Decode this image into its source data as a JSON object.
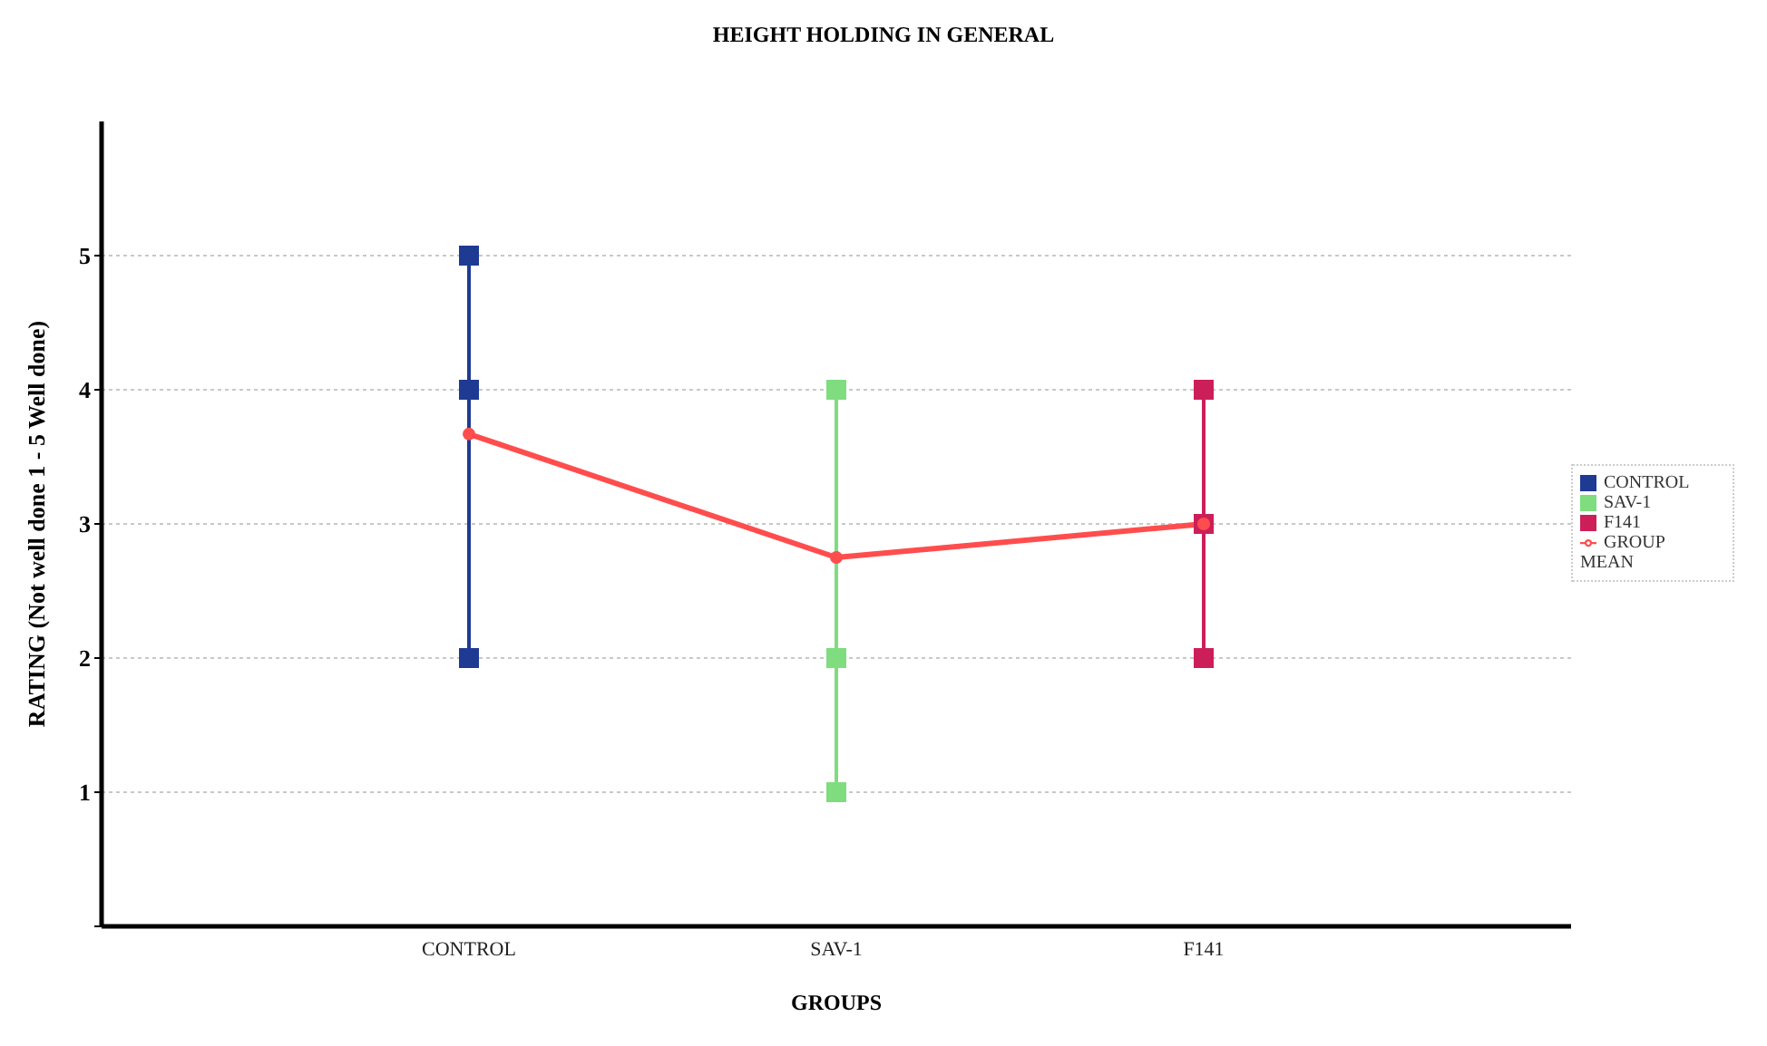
{
  "chart_data": {
    "type": "scatter",
    "title": "HEIGHT HOLDING IN GENERAL",
    "xlabel": "GROUPS",
    "ylabel": "RATING (Not well done 1 - 5 Well done)",
    "categories": [
      "CONTROL",
      "SAV-1",
      "F141"
    ],
    "series": [
      {
        "name": "CONTROL",
        "color": "#1f3a93",
        "x": [
          "CONTROL",
          "CONTROL",
          "CONTROL"
        ],
        "values": [
          5,
          4,
          2
        ]
      },
      {
        "name": "SAV-1",
        "color": "#7fdc7f",
        "x": [
          "SAV-1",
          "SAV-1",
          "SAV-1"
        ],
        "values": [
          4,
          2,
          1
        ]
      },
      {
        "name": "F141",
        "color": "#cc1f5a",
        "x": [
          "F141",
          "F141",
          "F141"
        ],
        "values": [
          4,
          3,
          2
        ]
      },
      {
        "name": "GROUP MEAN",
        "type": "line",
        "color": "#ff4d4d",
        "marker": "circle",
        "values": [
          3.67,
          2.75,
          3
        ]
      }
    ],
    "ylim": [
      0,
      6
    ],
    "yticks": [
      {
        "value": 0,
        "label": null
      },
      1,
      2,
      3,
      4,
      5
    ],
    "grid": "y",
    "legend": "right",
    "marker": "square",
    "line_style": "solid"
  }
}
